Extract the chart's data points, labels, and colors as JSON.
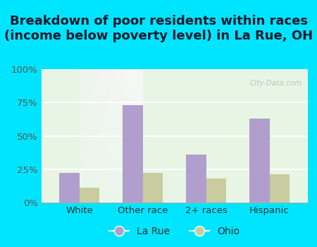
{
  "title": "Breakdown of poor residents within races\n(income below poverty level) in La Rue, OH",
  "categories": [
    "White",
    "Other race",
    "2+ races",
    "Hispanic"
  ],
  "larue_values": [
    22.0,
    73.0,
    36.0,
    63.0
  ],
  "ohio_values": [
    11.0,
    22.0,
    18.0,
    21.0
  ],
  "larue_color": "#b09fcc",
  "ohio_color": "#c8cc9f",
  "background_outer": "#00e5ff",
  "ylim": [
    0,
    100
  ],
  "yticks": [
    0,
    25,
    50,
    75,
    100
  ],
  "ytick_labels": [
    "0%",
    "25%",
    "50%",
    "75%",
    "100%"
  ],
  "legend_larue": "La Rue",
  "legend_ohio": "Ohio",
  "bar_width": 0.32,
  "title_fontsize": 13,
  "tick_fontsize": 9.5,
  "legend_fontsize": 10
}
